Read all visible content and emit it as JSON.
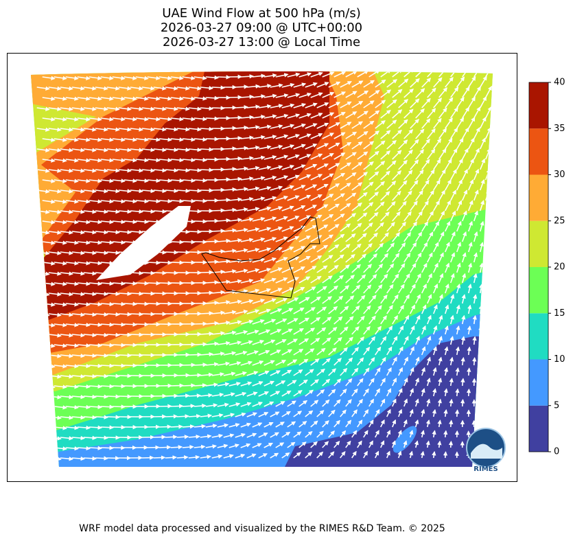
{
  "title": [
    "UAE Wind Flow at 500 hPa (m/s)",
    "2026-03-27 09:00 @ UTC+00:00",
    "2026-03-27 13:00 @ Local Time"
  ],
  "colorbar": {
    "ticks": [
      0,
      5,
      10,
      15,
      20,
      25,
      30,
      35,
      40
    ],
    "colors": [
      "#4040a0",
      "#4499ff",
      "#20dcc2",
      "#6cff55",
      "#cfe832",
      "#ffab35",
      "#ec5512",
      "#a91500"
    ]
  },
  "logo": "RIMES",
  "footer": "WRF model data processed and visualized by the RIMES R&D Team. © 2025"
}
